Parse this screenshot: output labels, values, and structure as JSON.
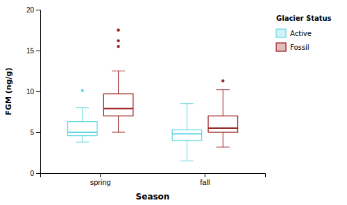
{
  "chart_data": {
    "type": "box",
    "xlabel": "Season",
    "ylabel": "FGM (ng/g)",
    "categories": [
      "spring",
      "fall"
    ],
    "legend_title": "Glacier Status",
    "legend": "right",
    "grid": false,
    "ylim": [
      0,
      20
    ],
    "yticks": [
      0,
      5,
      10,
      15,
      20
    ],
    "series": [
      {
        "name": "Active",
        "color": "#67D8E3",
        "values": [
          {
            "median": 5.0,
            "q1": 4.6,
            "q3": 6.3,
            "whislo": 3.8,
            "whishi": 8.0,
            "fliers": [
              10.1
            ]
          },
          {
            "median": 4.8,
            "q1": 4.0,
            "q3": 5.3,
            "whislo": 1.5,
            "whishi": 8.5,
            "fliers": []
          }
        ]
      },
      {
        "name": "Fossil",
        "color": "#9B2020",
        "values": [
          {
            "median": 7.9,
            "q1": 7.0,
            "q3": 9.7,
            "whislo": 5.0,
            "whishi": 12.5,
            "fliers": [
              15.5,
              16.2,
              17.5
            ]
          },
          {
            "median": 5.5,
            "q1": 5.0,
            "q3": 7.0,
            "whislo": 3.2,
            "whishi": 10.2,
            "fliers": [
              11.3
            ]
          }
        ]
      }
    ]
  }
}
